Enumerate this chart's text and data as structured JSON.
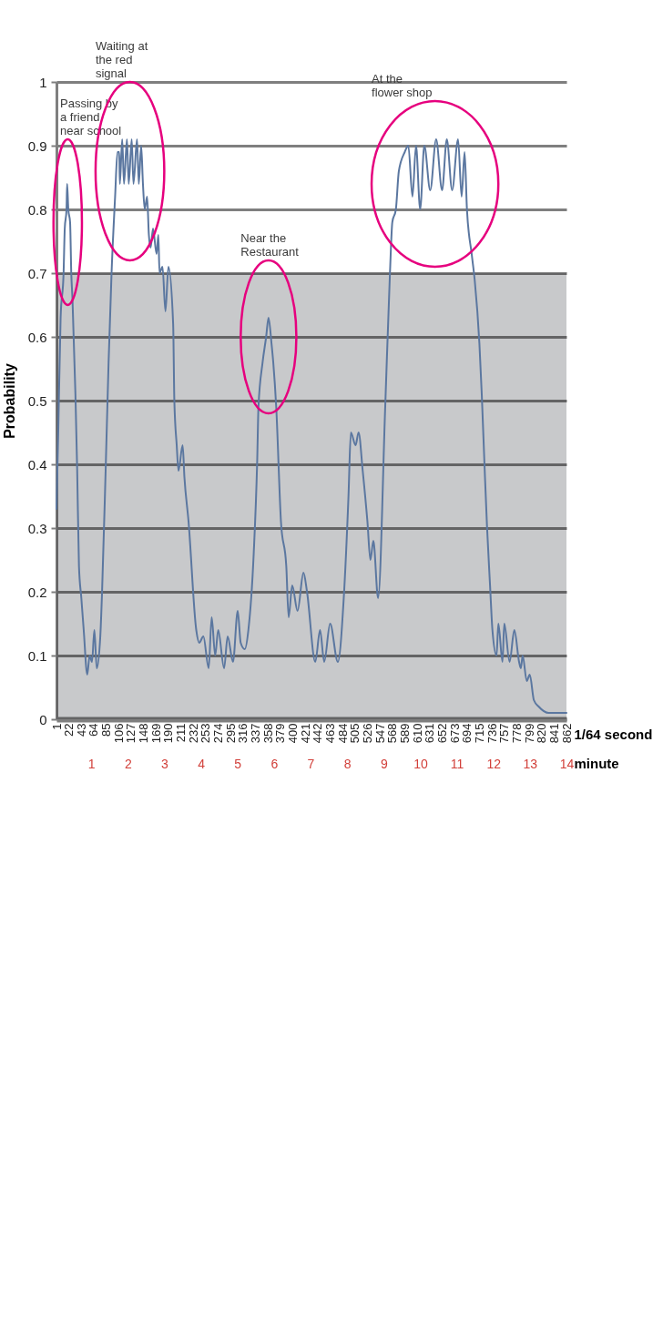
{
  "chart_data": {
    "type": "line",
    "xlabel": "1/64 second",
    "ylabel": "Probability",
    "x2label": "minute",
    "xlim": [
      1,
      862
    ],
    "xticks": [
      1,
      22,
      43,
      64,
      85,
      106,
      127,
      148,
      169,
      190,
      211,
      232,
      253,
      274,
      295,
      316,
      337,
      358,
      379,
      400,
      421,
      442,
      463,
      484,
      505,
      526,
      547,
      568,
      589,
      610,
      631,
      652,
      673,
      694,
      715,
      736,
      757,
      778,
      799,
      820,
      841,
      862
    ],
    "x2lim": [
      0.05,
      14
    ],
    "x2ticks": [
      1,
      2,
      3,
      4,
      5,
      6,
      7,
      8,
      9,
      10,
      11,
      12,
      13,
      14
    ],
    "ylim": [
      0,
      1
    ],
    "yticks": [
      0,
      0.1,
      0.2,
      0.3,
      0.4,
      0.5,
      0.6,
      0.7,
      0.8,
      0.9,
      1
    ],
    "grid": "y",
    "marker": "none",
    "line_style": "solid",
    "x": [
      1,
      4,
      8,
      13,
      15,
      18,
      19,
      21,
      24,
      26,
      28,
      33,
      36,
      39,
      43,
      47,
      53,
      57,
      61,
      65,
      69,
      75,
      78,
      84,
      89,
      94,
      100,
      104,
      107,
      108,
      112,
      115,
      120,
      123,
      128,
      131,
      137,
      140,
      144,
      147,
      150,
      154,
      157,
      160,
      164,
      170,
      173,
      175,
      180,
      185,
      190,
      198,
      200,
      204,
      207,
      214,
      217,
      224,
      237,
      242,
      249,
      258,
      263,
      269,
      274,
      284,
      290,
      299,
      307,
      312,
      319,
      325,
      334,
      340,
      342,
      349,
      355,
      359,
      364,
      367,
      372,
      380,
      389,
      393,
      399,
      408,
      418,
      424,
      438,
      446,
      453,
      463,
      476,
      486,
      494,
      498,
      506,
      511,
      518,
      526,
      531,
      536,
      544,
      556,
      564,
      568,
      574,
      579,
      589,
      595,
      602,
      608,
      615,
      622,
      632,
      642,
      652,
      660,
      669,
      679,
      685,
      690,
      694,
      702,
      707,
      715,
      719,
      724,
      728,
      733,
      737,
      744,
      747,
      754,
      757,
      766,
      774,
      782,
      785,
      788,
      795,
      800,
      807,
      815,
      832,
      862
    ],
    "series": [
      {
        "color": "#5b77a0",
        "values": [
          0.33,
          0.45,
          0.63,
          0.7,
          0.77,
          0.8,
          0.84,
          0.8,
          0.78,
          0.7,
          0.66,
          0.51,
          0.39,
          0.24,
          0.19,
          0.14,
          0.07,
          0.1,
          0.09,
          0.14,
          0.08,
          0.13,
          0.2,
          0.39,
          0.56,
          0.7,
          0.82,
          0.89,
          0.89,
          0.84,
          0.91,
          0.84,
          0.91,
          0.84,
          0.91,
          0.84,
          0.91,
          0.84,
          0.9,
          0.84,
          0.8,
          0.82,
          0.76,
          0.74,
          0.77,
          0.73,
          0.76,
          0.7,
          0.71,
          0.64,
          0.71,
          0.62,
          0.5,
          0.43,
          0.39,
          0.43,
          0.38,
          0.31,
          0.14,
          0.12,
          0.13,
          0.08,
          0.16,
          0.1,
          0.14,
          0.08,
          0.13,
          0.09,
          0.17,
          0.12,
          0.11,
          0.14,
          0.26,
          0.41,
          0.49,
          0.56,
          0.6,
          0.63,
          0.59,
          0.56,
          0.49,
          0.31,
          0.24,
          0.16,
          0.21,
          0.17,
          0.23,
          0.2,
          0.09,
          0.14,
          0.09,
          0.15,
          0.09,
          0.19,
          0.35,
          0.45,
          0.43,
          0.45,
          0.39,
          0.31,
          0.25,
          0.28,
          0.19,
          0.49,
          0.7,
          0.78,
          0.8,
          0.86,
          0.89,
          0.9,
          0.82,
          0.9,
          0.8,
          0.9,
          0.83,
          0.91,
          0.83,
          0.91,
          0.83,
          0.91,
          0.82,
          0.89,
          0.8,
          0.73,
          0.69,
          0.59,
          0.51,
          0.39,
          0.3,
          0.21,
          0.14,
          0.1,
          0.15,
          0.09,
          0.15,
          0.09,
          0.14,
          0.09,
          0.08,
          0.1,
          0.06,
          0.07,
          0.03,
          0.02,
          0.01,
          0.01
        ]
      }
    ],
    "bands": [
      {
        "axis": "y",
        "from": 0,
        "to": 0.7,
        "color": "#c8c9cb"
      }
    ],
    "annotations": [
      "Passing by a friend near school",
      "Waiting at the red signal",
      "Near the Restaurant",
      "At the flower shop"
    ]
  }
}
